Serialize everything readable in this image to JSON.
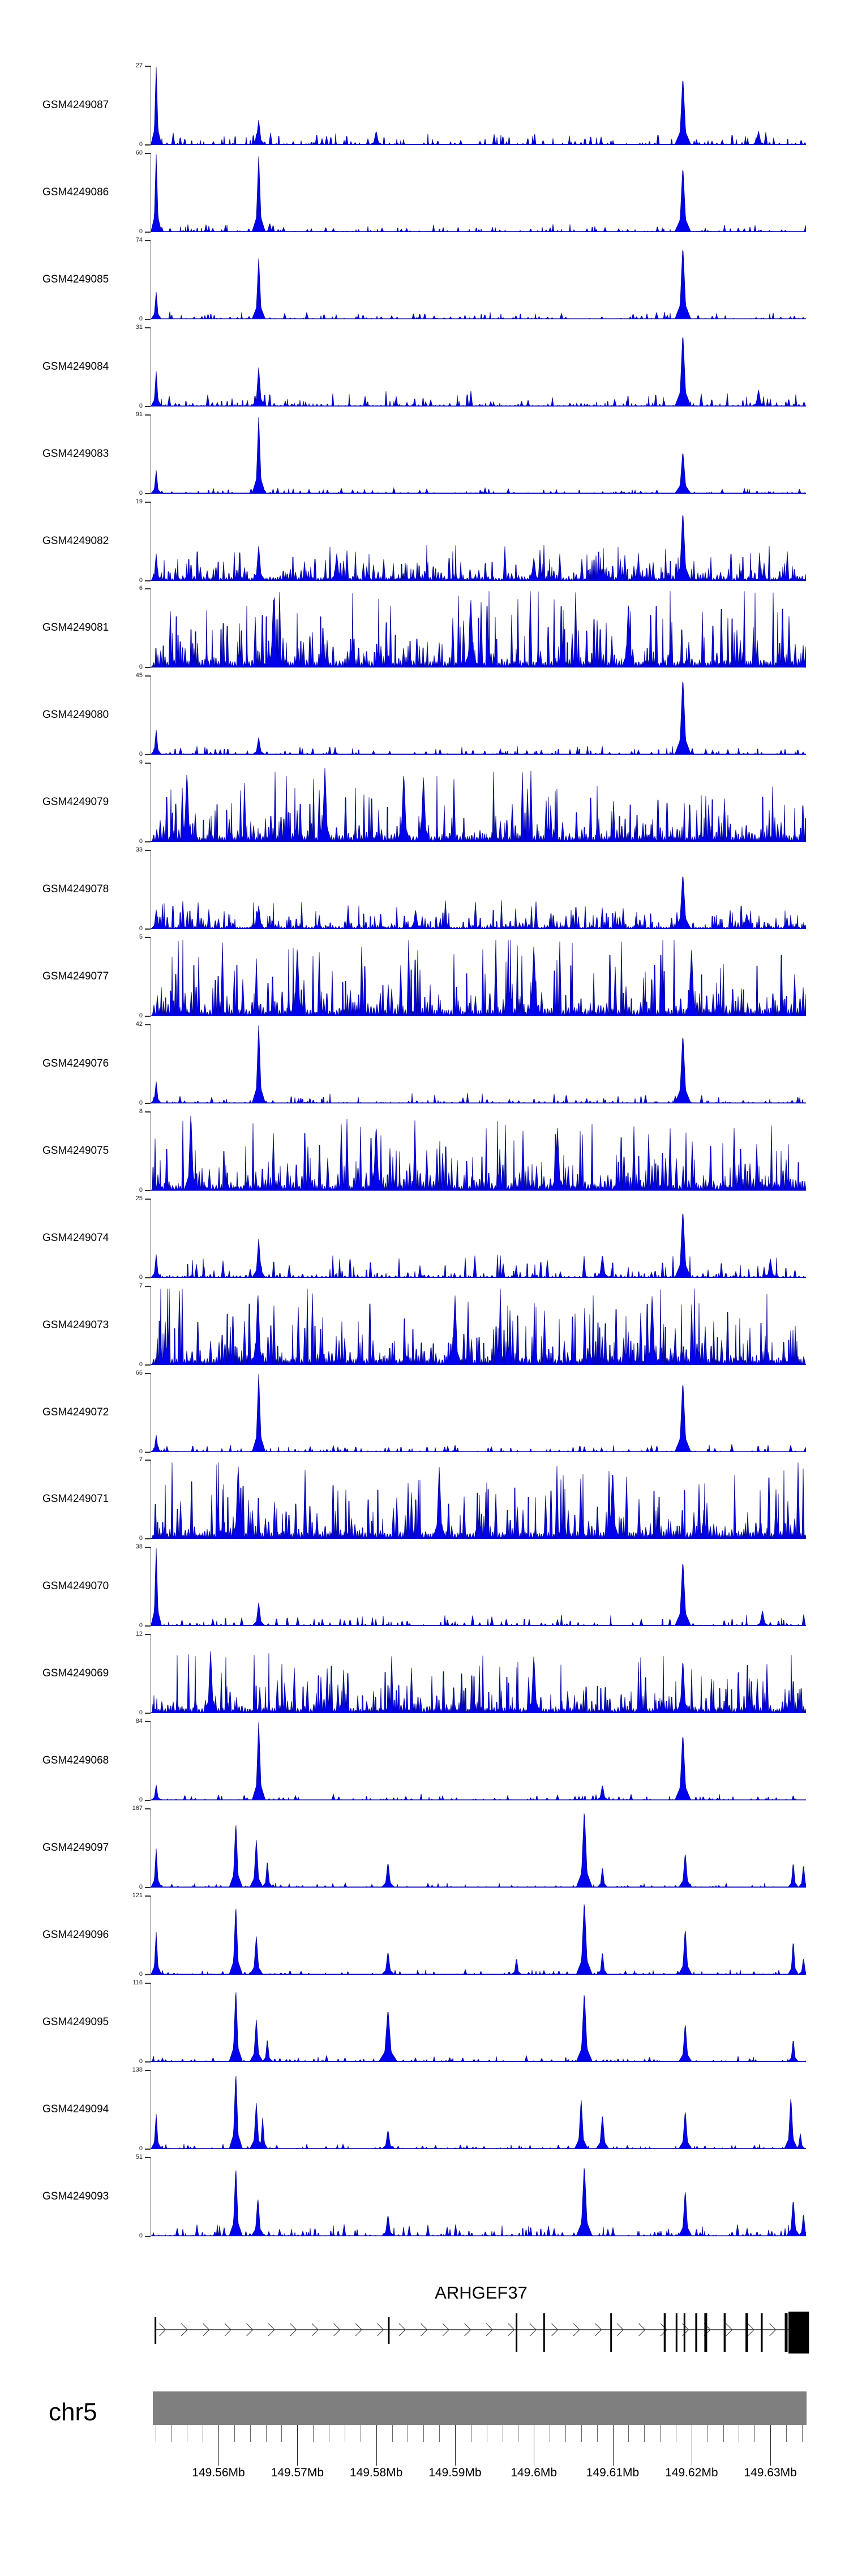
{
  "page": {
    "background": "#ffffff",
    "zero_label": "0"
  },
  "colors": {
    "signal_fill": "#0202EC",
    "signal_stroke": "#00008B",
    "axis": "#555555",
    "ruler_bar": "#7f7f7f",
    "gene": "#000000"
  },
  "chart_data": {
    "type": "area",
    "subtype": "genome-coverage-tracks",
    "title": "ARHGEF37",
    "chromosome": "chr5",
    "region": {
      "startMb": 149.5517,
      "endMb": 149.6348,
      "unit": "Mb"
    },
    "x_axis": {
      "major_ticks": [
        {
          "mb": 149.56,
          "label": "149.56Mb"
        },
        {
          "mb": 149.57,
          "label": "149.57Mb"
        },
        {
          "mb": 149.58,
          "label": "149.58Mb"
        },
        {
          "mb": 149.59,
          "label": "149.59Mb"
        },
        {
          "mb": 149.6,
          "label": "149.6Mb"
        },
        {
          "mb": 149.61,
          "label": "149.61Mb"
        },
        {
          "mb": 149.62,
          "label": "149.62Mb"
        },
        {
          "mb": 149.63,
          "label": "149.63Mb"
        }
      ],
      "minor_ticks": {
        "startMb": 149.552,
        "stepMb": 0.002,
        "endMb": 149.634
      }
    },
    "gene": {
      "name": "ARHGEF37",
      "strand": "+",
      "spanMb": [
        149.552,
        149.6349
      ],
      "exons": [
        {
          "mb": 149.552,
          "kind": "med",
          "w": 3
        },
        {
          "mb": 149.5816,
          "kind": "med",
          "w": 3
        },
        {
          "mb": 149.5978,
          "kind": "tall",
          "w": 3
        },
        {
          "mb": 149.6013,
          "kind": "tall",
          "w": 3
        },
        {
          "mb": 149.6098,
          "kind": "tall",
          "w": 3
        },
        {
          "mb": 149.6166,
          "kind": "tall",
          "w": 3.5
        },
        {
          "mb": 149.6181,
          "kind": "tall",
          "w": 3
        },
        {
          "mb": 149.6191,
          "kind": "tall",
          "w": 3
        },
        {
          "mb": 149.6206,
          "kind": "tall",
          "w": 3.5
        },
        {
          "mb": 149.6218,
          "kind": "tall",
          "w": 5
        },
        {
          "mb": 149.6242,
          "kind": "tall",
          "w": 3.5
        },
        {
          "mb": 149.627,
          "kind": "tall",
          "w": 4.5
        },
        {
          "mb": 149.6289,
          "kind": "tall",
          "w": 3.5
        },
        {
          "mb": 149.632,
          "kind": "tall",
          "w": 5
        }
      ],
      "end_box": {
        "startMb": 149.6323,
        "endMb": 149.6349
      }
    },
    "tracks": [
      {
        "label": "GSM4249087",
        "ymax": 27,
        "noise": 0.1,
        "peaks": [
          [
            149.5521,
            1.0,
            4
          ],
          [
            149.5651,
            0.32,
            5
          ],
          [
            149.58,
            0.18,
            5
          ],
          [
            149.6189,
            0.88,
            6
          ],
          [
            149.6285,
            0.18,
            5
          ]
        ]
      },
      {
        "label": "GSM4249086",
        "ymax": 60,
        "noise": 0.06,
        "peaks": [
          [
            149.5521,
            1.0,
            4
          ],
          [
            149.5651,
            0.97,
            5
          ],
          [
            149.5665,
            0.12,
            4
          ],
          [
            149.6189,
            0.85,
            6
          ]
        ]
      },
      {
        "label": "GSM4249085",
        "ymax": 74,
        "noise": 0.06,
        "peaks": [
          [
            149.5521,
            0.35,
            4
          ],
          [
            149.5651,
            0.78,
            5
          ],
          [
            149.6189,
            0.95,
            6
          ]
        ]
      },
      {
        "label": "GSM4249084",
        "ymax": 31,
        "noise": 0.12,
        "peaks": [
          [
            149.5521,
            0.45,
            4
          ],
          [
            149.5651,
            0.5,
            5
          ],
          [
            149.6189,
            0.95,
            6
          ],
          [
            149.6285,
            0.22,
            5
          ]
        ]
      },
      {
        "label": "GSM4249083",
        "ymax": 91,
        "noise": 0.05,
        "peaks": [
          [
            149.5521,
            0.3,
            4
          ],
          [
            149.5651,
            0.98,
            5
          ],
          [
            149.6189,
            0.55,
            6
          ]
        ]
      },
      {
        "label": "GSM4249082",
        "ymax": 19,
        "noise": 0.28,
        "peaks": [
          [
            149.5521,
            0.35,
            4
          ],
          [
            149.5651,
            0.45,
            5
          ],
          [
            149.575,
            0.35,
            5
          ],
          [
            149.6,
            0.3,
            5
          ],
          [
            149.6189,
            0.9,
            6
          ]
        ]
      },
      {
        "label": "GSM4249081",
        "ymax": 6,
        "noise": 0.62,
        "peaks": [
          [
            149.567,
            0.95,
            5
          ],
          [
            149.592,
            0.9,
            5
          ],
          [
            149.612,
            0.85,
            5
          ]
        ]
      },
      {
        "label": "GSM4249080",
        "ymax": 45,
        "noise": 0.07,
        "peaks": [
          [
            149.5521,
            0.32,
            4
          ],
          [
            149.5651,
            0.22,
            5
          ],
          [
            149.6189,
            1.0,
            6
          ]
        ]
      },
      {
        "label": "GSM4249079",
        "ymax": 9,
        "noise": 0.55,
        "peaks": [
          [
            149.556,
            0.9,
            5
          ],
          [
            149.5735,
            0.95,
            5
          ],
          [
            149.5835,
            0.9,
            5
          ],
          [
            149.586,
            0.85,
            5
          ]
        ]
      },
      {
        "label": "GSM4249078",
        "ymax": 33,
        "noise": 0.22,
        "peaks": [
          [
            149.5521,
            0.25,
            4
          ],
          [
            149.5651,
            0.3,
            5
          ],
          [
            149.585,
            0.25,
            5
          ],
          [
            149.6189,
            0.72,
            6
          ],
          [
            149.627,
            0.2,
            5
          ]
        ]
      },
      {
        "label": "GSM4249077",
        "ymax": 5,
        "noise": 0.65,
        "peaks": [
          [
            149.57,
            0.9,
            5
          ],
          [
            149.6,
            0.92,
            5
          ],
          [
            149.62,
            0.88,
            5
          ]
        ]
      },
      {
        "label": "GSM4249076",
        "ymax": 42,
        "noise": 0.08,
        "peaks": [
          [
            149.5521,
            0.28,
            4
          ],
          [
            149.5651,
            1.0,
            5
          ],
          [
            149.6189,
            0.9,
            6
          ]
        ]
      },
      {
        "label": "GSM4249075",
        "ymax": 8,
        "noise": 0.55,
        "peaks": [
          [
            149.5565,
            1.0,
            5
          ],
          [
            149.58,
            0.85,
            5
          ],
          [
            149.603,
            0.8,
            5
          ]
        ]
      },
      {
        "label": "GSM4249074",
        "ymax": 25,
        "noise": 0.18,
        "peaks": [
          [
            149.5521,
            0.3,
            4
          ],
          [
            149.5651,
            0.5,
            5
          ],
          [
            149.6087,
            0.3,
            5
          ],
          [
            149.6189,
            0.88,
            6
          ],
          [
            149.63,
            0.25,
            5
          ]
        ]
      },
      {
        "label": "GSM4249073",
        "ymax": 7,
        "noise": 0.62,
        "peaks": [
          [
            149.565,
            0.95,
            5
          ],
          [
            149.59,
            0.9,
            5
          ],
          [
            149.615,
            0.9,
            5
          ]
        ]
      },
      {
        "label": "GSM4249072",
        "ymax": 66,
        "noise": 0.06,
        "peaks": [
          [
            149.5521,
            0.22,
            4
          ],
          [
            149.5651,
            1.0,
            5
          ],
          [
            149.6189,
            0.92,
            6
          ]
        ]
      },
      {
        "label": "GSM4249071",
        "ymax": 7,
        "noise": 0.62,
        "peaks": [
          [
            149.5625,
            0.95,
            5
          ],
          [
            149.588,
            0.92,
            5
          ],
          [
            149.61,
            0.9,
            5
          ]
        ]
      },
      {
        "label": "GSM4249070",
        "ymax": 38,
        "noise": 0.09,
        "peaks": [
          [
            149.5521,
            1.0,
            4
          ],
          [
            149.5651,
            0.3,
            5
          ],
          [
            149.6189,
            0.85,
            6
          ],
          [
            149.629,
            0.2,
            5
          ]
        ]
      },
      {
        "label": "GSM4249069",
        "ymax": 12,
        "noise": 0.48,
        "peaks": [
          [
            149.559,
            0.8,
            5
          ],
          [
            149.6,
            0.75,
            5
          ],
          [
            149.6189,
            0.7,
            5
          ]
        ]
      },
      {
        "label": "GSM4249068",
        "ymax": 84,
        "noise": 0.05,
        "peaks": [
          [
            149.5521,
            0.2,
            4
          ],
          [
            149.5651,
            1.0,
            5
          ],
          [
            149.6087,
            0.2,
            5
          ],
          [
            149.6189,
            0.87,
            6
          ]
        ]
      },
      {
        "label": "GSM4249097",
        "ymax": 167,
        "noise": 0.035,
        "peaks": [
          [
            149.5521,
            0.5,
            4
          ],
          [
            149.5622,
            0.85,
            5
          ],
          [
            149.5648,
            0.62,
            5
          ],
          [
            149.5662,
            0.35,
            4
          ],
          [
            149.5815,
            0.33,
            5
          ],
          [
            149.6064,
            1.0,
            6
          ],
          [
            149.6087,
            0.27,
            4
          ],
          [
            149.6192,
            0.45,
            5
          ],
          [
            149.6329,
            0.33,
            4
          ],
          [
            149.6342,
            0.3,
            4
          ]
        ]
      },
      {
        "label": "GSM4249096",
        "ymax": 121,
        "noise": 0.04,
        "peaks": [
          [
            149.5521,
            0.55,
            4
          ],
          [
            149.5622,
            0.9,
            5
          ],
          [
            149.5648,
            0.5,
            5
          ],
          [
            149.5815,
            0.3,
            5
          ],
          [
            149.5978,
            0.22,
            4
          ],
          [
            149.6064,
            0.95,
            6
          ],
          [
            149.6087,
            0.3,
            4
          ],
          [
            149.6192,
            0.6,
            5
          ],
          [
            149.6329,
            0.45,
            4
          ],
          [
            149.6342,
            0.22,
            4
          ]
        ]
      },
      {
        "label": "GSM4249095",
        "ymax": 116,
        "noise": 0.05,
        "peaks": [
          [
            149.5622,
            0.95,
            5
          ],
          [
            149.5648,
            0.55,
            5
          ],
          [
            149.5662,
            0.3,
            4
          ],
          [
            149.5815,
            0.68,
            7
          ],
          [
            149.6064,
            0.9,
            6
          ],
          [
            149.6192,
            0.5,
            5
          ],
          [
            149.6329,
            0.3,
            4
          ]
        ]
      },
      {
        "label": "GSM4249094",
        "ymax": 138,
        "noise": 0.04,
        "peaks": [
          [
            149.5521,
            0.45,
            4
          ],
          [
            149.5622,
            1.0,
            5
          ],
          [
            149.5656,
            0.4,
            4
          ],
          [
            149.5648,
            0.6,
            5
          ],
          [
            149.5815,
            0.25,
            5
          ],
          [
            149.606,
            0.65,
            5
          ],
          [
            149.6087,
            0.45,
            5
          ],
          [
            149.6192,
            0.5,
            5
          ],
          [
            149.6326,
            0.68,
            5
          ],
          [
            149.6338,
            0.2,
            4
          ]
        ]
      },
      {
        "label": "GSM4249093",
        "ymax": 51,
        "noise": 0.09,
        "peaks": [
          [
            149.5622,
            0.9,
            5
          ],
          [
            149.565,
            0.5,
            5
          ],
          [
            149.5815,
            0.28,
            5
          ],
          [
            149.6064,
            0.92,
            6
          ],
          [
            149.6192,
            0.6,
            5
          ],
          [
            149.6329,
            0.48,
            5
          ],
          [
            149.6342,
            0.3,
            4
          ]
        ]
      }
    ]
  }
}
